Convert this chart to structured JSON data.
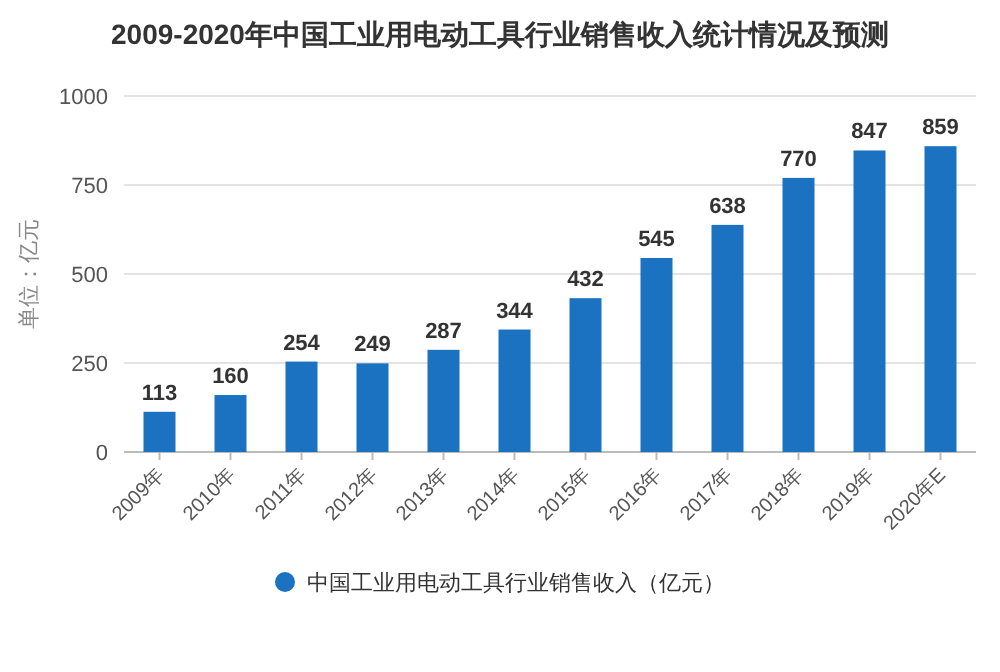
{
  "chart_data": {
    "type": "bar",
    "title": "2009-2020年中国工业用电动工具行业销售收入统计情况及预测",
    "ylabel": "单位：亿元",
    "categories": [
      "2009年",
      "2010年",
      "2011年",
      "2012年",
      "2013年",
      "2014年",
      "2015年",
      "2016年",
      "2017年",
      "2018年",
      "2019年",
      "2020年E"
    ],
    "series": [
      {
        "name": "中国工业用电动工具行业销售收入（亿元）",
        "color": "#1a72c0",
        "values": [
          113,
          160,
          254,
          249,
          287,
          344,
          432,
          545,
          638,
          770,
          847,
          859
        ]
      }
    ],
    "ylim": [
      0,
      1000
    ],
    "yticks": [
      0,
      250,
      500,
      750,
      1000
    ],
    "grid": "y",
    "legend": "bottom",
    "data_labels": true
  }
}
